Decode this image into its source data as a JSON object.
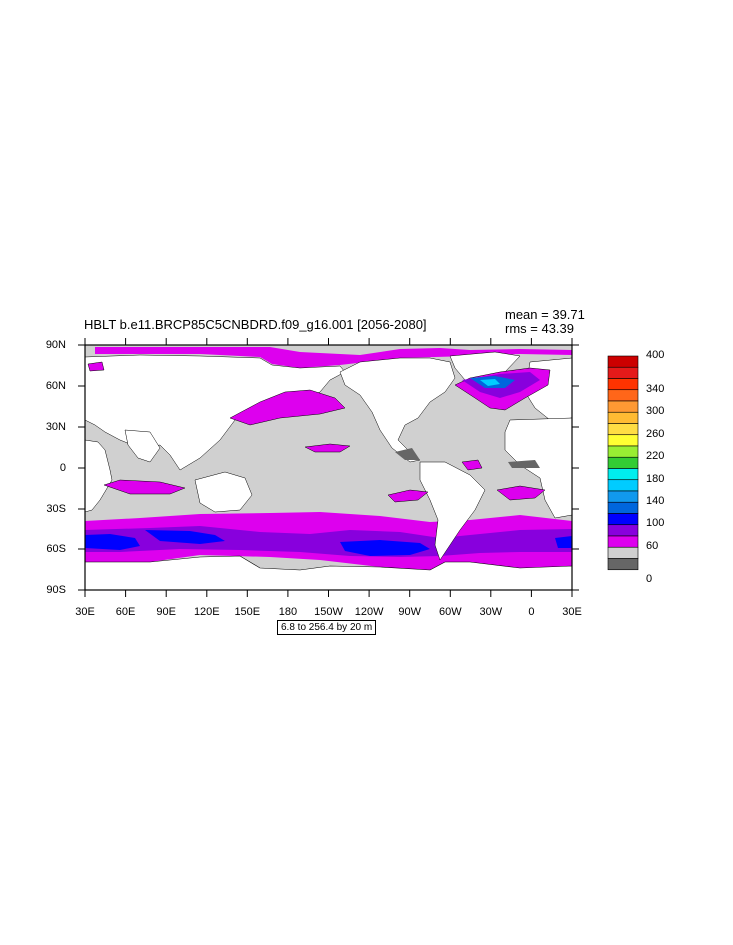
{
  "title": "HBLT b.e11.BRCP85C5CNBDRD.f09_g16.001 [2056-2080]",
  "stats": {
    "mean": "mean = 39.71",
    "rms": "rms = 43.39"
  },
  "map": {
    "lat_labels": [
      "90N",
      "60N",
      "30N",
      "0",
      "30S",
      "60S",
      "90S"
    ],
    "lon_labels": [
      "30E",
      "60E",
      "90E",
      "120E",
      "150E",
      "180",
      "150W",
      "120W",
      "90W",
      "60W",
      "30W",
      "0",
      "30E"
    ],
    "contour_info": "6.8 to 256.4 by 20 m"
  },
  "colorbar": {
    "labels": [
      "400",
      "340",
      "300",
      "260",
      "220",
      "180",
      "140",
      "100",
      "60",
      "0"
    ],
    "colors_top_to_bottom": [
      "#cc0000",
      "#e51a1a",
      "#ff3300",
      "#ff6619",
      "#ff9933",
      "#ffbb33",
      "#ffdd44",
      "#ffff33",
      "#99ee33",
      "#33cc33",
      "#00eeee",
      "#00ccff",
      "#1199ee",
      "#0066dd",
      "#0000ff",
      "#8800dd",
      "#dd00ee",
      "#d0d0d0",
      "#666666"
    ]
  },
  "colors": {
    "land": "#ffffff",
    "ocean_low": "#d0d0d0",
    "ocean_min": "#666666",
    "mid": "#dd00ee",
    "high": "#8800dd",
    "higher": "#0000ff"
  }
}
